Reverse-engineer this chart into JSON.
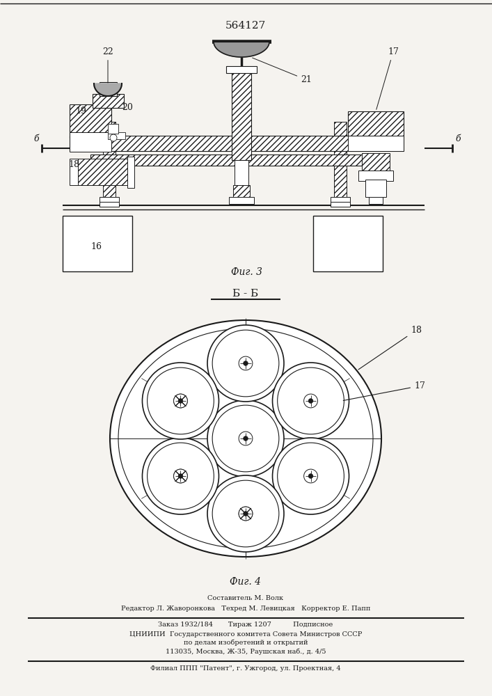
{
  "title": "564127",
  "fig3_label": "Фиг. 3",
  "fig4_label": "Фиг. 4",
  "section_label": "Б - Б",
  "bg_color": "#f5f3ef",
  "line_color": "#1a1a1a",
  "footer": {
    "line1": "Составитель М. Волк",
    "line2": "Редактор Л. Жаворонкова   Техред М. Левицкая   Корректор Е. Папп",
    "line3": "Заказ 1932/184       Тираж 1207          Подписное",
    "line4": "ЦНИИПИ  Государственного комитета Совета Министров СССР",
    "line5": "по делам изобретений и открытий",
    "line6": "113035, Москва, Ж-35, Раушская наб., д. 4/5",
    "line7": "Филиал ППП \"Патент\", г. Ужгород, ул. Проектная, 4"
  }
}
